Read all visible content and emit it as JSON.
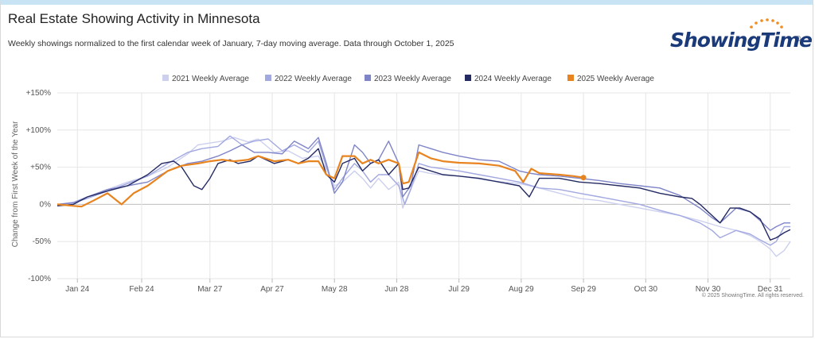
{
  "title": "Real Estate Showing Activity in Minnesota",
  "subtitle": "Weekly showings normalized to the first calendar week of January, 7-day moving average. Data through October 1, 2025",
  "logo": {
    "text": "ShowingTime",
    "mark": "®"
  },
  "copyright": "© 2025 ShowingTime. All rights reserved.",
  "colors": {
    "2021": "#ccd0ee",
    "2022": "#a2a8e0",
    "2023": "#7e84c7",
    "2024": "#242a62",
    "2025": "#e8841f",
    "grid": "#e6e6e6",
    "zero": "#bdbdbd"
  },
  "chart_data": {
    "type": "line",
    "ylabel": "Change from First Week of the Year",
    "xlabel": "",
    "ylim": [
      -100,
      150
    ],
    "xlim": [
      0,
      365
    ],
    "y_ticks": [
      {
        "value": 150,
        "label": "+150%"
      },
      {
        "value": 100,
        "label": "+100%"
      },
      {
        "value": 50,
        "label": "+50%"
      },
      {
        "value": 0,
        "label": "0%"
      },
      {
        "value": -50,
        "label": "-50%"
      },
      {
        "value": -100,
        "label": "-100%"
      }
    ],
    "x_ticks": [
      {
        "day": 10,
        "label": "Jan 24"
      },
      {
        "day": 42,
        "label": "Feb 24"
      },
      {
        "day": 76,
        "label": "Mar 27"
      },
      {
        "day": 107,
        "label": "Apr 27"
      },
      {
        "day": 138,
        "label": "May 28"
      },
      {
        "day": 169,
        "label": "Jun 28"
      },
      {
        "day": 200,
        "label": "Jul 29"
      },
      {
        "day": 231,
        "label": "Aug 29"
      },
      {
        "day": 262,
        "label": "Sep 29"
      },
      {
        "day": 293,
        "label": "Oct 30"
      },
      {
        "day": 324,
        "label": "Nov 30"
      },
      {
        "day": 355,
        "label": "Dec 31"
      }
    ],
    "legend_position": "top-center",
    "grid": true,
    "series": [
      {
        "name": "2021 Weekly Average",
        "color_key": "2021",
        "x": [
          0,
          8,
          15,
          25,
          35,
          45,
          55,
          65,
          70,
          75,
          82,
          88,
          95,
          100,
          108,
          115,
          122,
          130,
          134,
          138,
          142,
          148,
          152,
          156,
          160,
          165,
          170,
          172,
          175,
          180,
          185,
          190,
          200,
          215,
          230,
          240,
          250,
          260,
          270,
          280,
          290,
          300,
          310,
          320,
          330,
          338,
          345,
          350,
          355,
          358,
          362,
          365
        ],
        "y": [
          0,
          3,
          10,
          20,
          30,
          38,
          50,
          68,
          80,
          82,
          85,
          90,
          84,
          88,
          70,
          72,
          62,
          65,
          48,
          25,
          30,
          45,
          35,
          22,
          35,
          20,
          30,
          -5,
          15,
          45,
          42,
          40,
          38,
          32,
          28,
          22,
          15,
          8,
          5,
          0,
          -5,
          -10,
          -15,
          -22,
          -30,
          -35,
          -42,
          -50,
          -60,
          -70,
          -62,
          -50
        ]
      },
      {
        "name": "2022 Weekly Average",
        "color_key": "2022",
        "x": [
          0,
          8,
          15,
          25,
          35,
          45,
          55,
          65,
          72,
          80,
          86,
          92,
          98,
          105,
          112,
          118,
          125,
          130,
          134,
          138,
          142,
          148,
          152,
          156,
          160,
          165,
          170,
          173,
          176,
          180,
          186,
          192,
          200,
          210,
          220,
          230,
          240,
          250,
          260,
          270,
          280,
          290,
          300,
          310,
          320,
          326,
          330,
          338,
          345,
          350,
          355,
          358,
          362,
          365
        ],
        "y": [
          0,
          2,
          8,
          18,
          28,
          38,
          55,
          70,
          75,
          78,
          92,
          80,
          85,
          88,
          72,
          80,
          70,
          85,
          50,
          20,
          35,
          55,
          45,
          30,
          40,
          40,
          25,
          0,
          20,
          55,
          50,
          48,
          45,
          40,
          35,
          30,
          22,
          20,
          15,
          10,
          5,
          0,
          -8,
          -15,
          -25,
          -35,
          -45,
          -35,
          -40,
          -48,
          -55,
          -50,
          -30,
          -30
        ]
      },
      {
        "name": "2023 Weekly Average",
        "color_key": "2023",
        "x": [
          0,
          8,
          15,
          25,
          35,
          45,
          55,
          65,
          72,
          80,
          86,
          92,
          98,
          105,
          112,
          118,
          125,
          130,
          134,
          138,
          142,
          148,
          152,
          156,
          160,
          165,
          170,
          172,
          176,
          180,
          186,
          192,
          200,
          210,
          220,
          230,
          235,
          240,
          250,
          260,
          270,
          280,
          290,
          300,
          310,
          320,
          326,
          330,
          338,
          345,
          350,
          355,
          358,
          362,
          365
        ],
        "y": [
          0,
          2,
          10,
          20,
          25,
          30,
          45,
          55,
          58,
          65,
          72,
          80,
          70,
          70,
          68,
          85,
          75,
          90,
          55,
          15,
          30,
          80,
          70,
          55,
          60,
          85,
          55,
          10,
          25,
          80,
          75,
          70,
          65,
          60,
          58,
          45,
          42,
          40,
          38,
          35,
          32,
          28,
          25,
          22,
          12,
          -5,
          -18,
          -25,
          -5,
          -10,
          -22,
          -35,
          -30,
          -25,
          -25
        ]
      },
      {
        "name": "2024 Weekly Average",
        "color_key": "2024",
        "x": [
          0,
          8,
          15,
          25,
          35,
          45,
          52,
          58,
          62,
          68,
          72,
          76,
          80,
          86,
          90,
          96,
          100,
          108,
          115,
          120,
          125,
          130,
          134,
          138,
          142,
          148,
          152,
          156,
          160,
          165,
          170,
          172,
          175,
          180,
          186,
          192,
          200,
          210,
          220,
          230,
          235,
          240,
          250,
          260,
          270,
          280,
          290,
          300,
          310,
          316,
          320,
          326,
          330,
          335,
          340,
          345,
          350,
          355,
          358,
          362,
          365
        ],
        "y": [
          -2,
          0,
          10,
          18,
          25,
          40,
          55,
          58,
          50,
          25,
          20,
          35,
          55,
          60,
          55,
          58,
          65,
          55,
          60,
          55,
          62,
          75,
          40,
          30,
          55,
          62,
          45,
          55,
          60,
          40,
          55,
          20,
          22,
          50,
          45,
          40,
          38,
          35,
          30,
          25,
          10,
          35,
          35,
          30,
          28,
          25,
          22,
          15,
          10,
          8,
          0,
          -15,
          -25,
          -5,
          -5,
          -10,
          -20,
          -48,
          -45,
          -38,
          -34
        ]
      },
      {
        "name": "2025 Weekly Average",
        "color_key": "2025",
        "x": [
          0,
          8,
          12,
          18,
          25,
          32,
          38,
          45,
          50,
          55,
          62,
          70,
          76,
          82,
          88,
          95,
          100,
          108,
          115,
          120,
          125,
          130,
          134,
          138,
          142,
          148,
          152,
          156,
          160,
          165,
          170,
          172,
          175,
          180,
          186,
          192,
          200,
          210,
          220,
          228,
          232,
          236,
          240,
          250,
          257,
          262
        ],
        "y": [
          0,
          -2,
          -3,
          5,
          15,
          0,
          15,
          25,
          35,
          45,
          52,
          55,
          58,
          60,
          58,
          60,
          65,
          58,
          60,
          55,
          58,
          58,
          40,
          35,
          65,
          65,
          55,
          60,
          55,
          60,
          55,
          28,
          30,
          70,
          62,
          58,
          56,
          55,
          52,
          45,
          30,
          48,
          42,
          40,
          38,
          36
        ]
      }
    ]
  }
}
